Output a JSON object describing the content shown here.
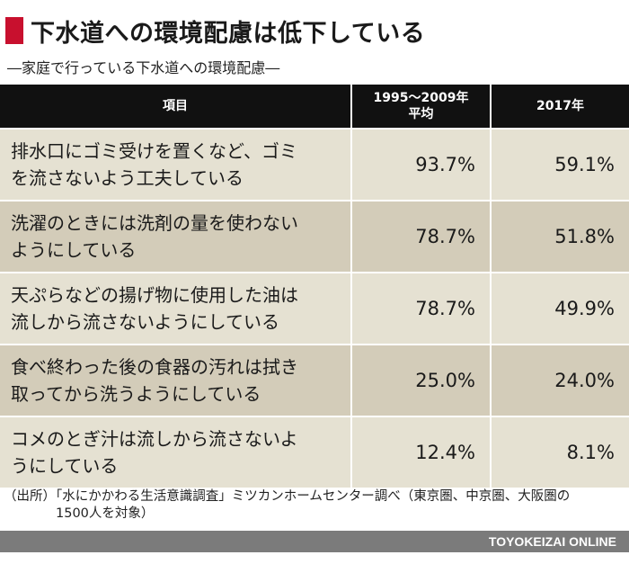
{
  "header": {
    "title": "下水道への環境配慮は低下している",
    "subtitle": "―家庭で行っている下水道への環境配慮―"
  },
  "colors": {
    "accent": "#c8102e",
    "header_bg": "#111111",
    "row_light": "#e5e1d2",
    "row_dark": "#d3ccb9",
    "footer_bg": "#7b7b7b"
  },
  "chart_data": {
    "type": "table",
    "columns": [
      "項目",
      "1995〜2009年平均",
      "2017年"
    ],
    "column_lines": {
      "period_line1": "1995〜2009年",
      "period_line2": "平均"
    },
    "rows": [
      {
        "line1": "排水口にゴミ受けを置くなど、ゴミ",
        "line2": "を流さないよう工夫している",
        "avg": "93.7%",
        "y2017": "59.1%"
      },
      {
        "line1": "洗濯のときには洗剤の量を使わない",
        "line2": "ようにしている",
        "avg": "78.7%",
        "y2017": "51.8%"
      },
      {
        "line1": "天ぷらなどの揚げ物に使用した油は",
        "line2": "流しから流さないようにしている",
        "avg": "78.7%",
        "y2017": "49.9%"
      },
      {
        "line1": "食べ終わった後の食器の汚れは拭き",
        "line2": "取ってから洗うようにしている",
        "avg": "25.0%",
        "y2017": "24.0%"
      },
      {
        "line1": "コメのとぎ汁は流しから流さないよ",
        "line2": "うにしている",
        "avg": "12.4%",
        "y2017": "8.1%"
      }
    ]
  },
  "source": {
    "line1": "（出所）「水にかかわる生活意識調査」ミツカンホームセンター調べ（東京圏、中京圏、大阪圏の",
    "line2": "　　　　1500人を対象）"
  },
  "footer": {
    "brand": "TOYOKEIZAI  ONLINE"
  }
}
